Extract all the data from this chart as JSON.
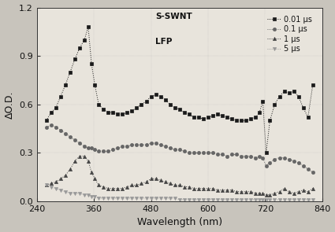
{
  "xlabel": "Wavelength (nm)",
  "ylabel": "ΔO.D.",
  "xlim": [
    240,
    840
  ],
  "ylim": [
    0.0,
    1.2
  ],
  "yticks": [
    0.0,
    0.3,
    0.6,
    0.9,
    1.2
  ],
  "xticks": [
    240,
    360,
    480,
    600,
    720,
    840
  ],
  "legend_text1": "S-SWNT",
  "legend_text2": "LFP",
  "fig_bg": "#c8c4bc",
  "plot_bg": "#e8e4dc",
  "series": {
    "s1_label": "0.01 μs",
    "s1_color": "#1a1a1a",
    "s1_marker": "s",
    "s1_x": [
      260,
      270,
      280,
      290,
      300,
      310,
      320,
      330,
      340,
      348,
      355,
      362,
      370,
      380,
      390,
      400,
      410,
      420,
      430,
      440,
      450,
      460,
      470,
      480,
      490,
      500,
      510,
      520,
      530,
      540,
      550,
      560,
      570,
      580,
      590,
      600,
      610,
      620,
      630,
      640,
      650,
      660,
      670,
      680,
      690,
      700,
      708,
      715,
      722,
      730,
      740,
      750,
      760,
      770,
      780,
      790,
      800,
      810,
      820
    ],
    "s1_y": [
      0.5,
      0.55,
      0.58,
      0.65,
      0.72,
      0.8,
      0.88,
      0.95,
      1.0,
      1.08,
      0.85,
      0.72,
      0.6,
      0.57,
      0.55,
      0.55,
      0.54,
      0.54,
      0.55,
      0.56,
      0.58,
      0.6,
      0.62,
      0.65,
      0.66,
      0.65,
      0.63,
      0.6,
      0.58,
      0.57,
      0.55,
      0.54,
      0.52,
      0.52,
      0.51,
      0.52,
      0.53,
      0.54,
      0.53,
      0.52,
      0.51,
      0.5,
      0.5,
      0.5,
      0.51,
      0.52,
      0.55,
      0.62,
      0.3,
      0.5,
      0.6,
      0.65,
      0.68,
      0.67,
      0.68,
      0.65,
      0.58,
      0.52,
      0.72
    ],
    "s2_label": "0.1 μs",
    "s2_color": "#666666",
    "s2_marker": "o",
    "s2_x": [
      260,
      270,
      280,
      290,
      300,
      310,
      320,
      330,
      340,
      348,
      355,
      362,
      370,
      380,
      390,
      400,
      410,
      420,
      430,
      440,
      450,
      460,
      470,
      480,
      490,
      500,
      510,
      520,
      530,
      540,
      550,
      560,
      570,
      580,
      590,
      600,
      610,
      620,
      630,
      640,
      650,
      660,
      670,
      680,
      690,
      700,
      708,
      715,
      722,
      730,
      740,
      750,
      760,
      770,
      780,
      790,
      800,
      810,
      820
    ],
    "s2_y": [
      0.46,
      0.47,
      0.46,
      0.44,
      0.42,
      0.4,
      0.38,
      0.36,
      0.34,
      0.33,
      0.33,
      0.32,
      0.31,
      0.31,
      0.31,
      0.32,
      0.33,
      0.34,
      0.34,
      0.35,
      0.35,
      0.35,
      0.35,
      0.36,
      0.36,
      0.35,
      0.34,
      0.33,
      0.32,
      0.32,
      0.31,
      0.3,
      0.3,
      0.3,
      0.3,
      0.3,
      0.3,
      0.29,
      0.29,
      0.28,
      0.29,
      0.29,
      0.28,
      0.28,
      0.28,
      0.27,
      0.28,
      0.27,
      0.22,
      0.24,
      0.26,
      0.27,
      0.27,
      0.26,
      0.25,
      0.24,
      0.22,
      0.2,
      0.18
    ],
    "s3_label": "1 μs",
    "s3_color": "#444444",
    "s3_marker": "^",
    "s3_x": [
      260,
      270,
      280,
      290,
      300,
      310,
      320,
      330,
      340,
      348,
      355,
      362,
      370,
      380,
      390,
      400,
      410,
      420,
      430,
      440,
      450,
      460,
      470,
      480,
      490,
      500,
      510,
      520,
      530,
      540,
      550,
      560,
      570,
      580,
      590,
      600,
      610,
      620,
      630,
      640,
      650,
      660,
      670,
      680,
      690,
      700,
      708,
      715,
      722,
      730,
      740,
      750,
      760,
      770,
      780,
      790,
      800,
      810,
      820
    ],
    "s3_y": [
      0.1,
      0.11,
      0.12,
      0.14,
      0.16,
      0.2,
      0.25,
      0.28,
      0.28,
      0.25,
      0.18,
      0.14,
      0.1,
      0.09,
      0.08,
      0.08,
      0.08,
      0.08,
      0.09,
      0.1,
      0.1,
      0.11,
      0.12,
      0.14,
      0.14,
      0.13,
      0.12,
      0.11,
      0.1,
      0.1,
      0.09,
      0.09,
      0.08,
      0.08,
      0.08,
      0.08,
      0.08,
      0.07,
      0.07,
      0.07,
      0.07,
      0.06,
      0.06,
      0.06,
      0.06,
      0.05,
      0.05,
      0.05,
      0.04,
      0.04,
      0.05,
      0.06,
      0.08,
      0.06,
      0.05,
      0.06,
      0.07,
      0.06,
      0.08
    ],
    "s4_label": "5 μs",
    "s4_color": "#999999",
    "s4_marker": "v",
    "s4_x": [
      260,
      270,
      280,
      290,
      300,
      310,
      320,
      330,
      340,
      348,
      355,
      362,
      370,
      380,
      390,
      400,
      410,
      420,
      430,
      440,
      450,
      460,
      470,
      480,
      490,
      500,
      510,
      520,
      530,
      540,
      550,
      560,
      570,
      580,
      590,
      600,
      610,
      620,
      630,
      640,
      650,
      660,
      670,
      680,
      690,
      700,
      708,
      715,
      722,
      730,
      740,
      750,
      760,
      770,
      780,
      790,
      800,
      810,
      820
    ],
    "s4_y": [
      0.1,
      0.09,
      0.08,
      0.07,
      0.06,
      0.05,
      0.05,
      0.05,
      0.04,
      0.04,
      0.03,
      0.03,
      0.02,
      0.02,
      0.02,
      0.02,
      0.02,
      0.02,
      0.02,
      0.02,
      0.02,
      0.02,
      0.02,
      0.02,
      0.02,
      0.02,
      0.02,
      0.02,
      0.02,
      0.01,
      0.01,
      0.01,
      0.01,
      0.01,
      0.01,
      0.01,
      0.01,
      0.01,
      0.01,
      0.01,
      0.01,
      0.01,
      0.01,
      0.01,
      0.01,
      0.01,
      0.01,
      0.01,
      0.01,
      0.01,
      0.01,
      0.01,
      0.01,
      0.01,
      0.01,
      0.01,
      0.01,
      0.01,
      0.01
    ]
  }
}
